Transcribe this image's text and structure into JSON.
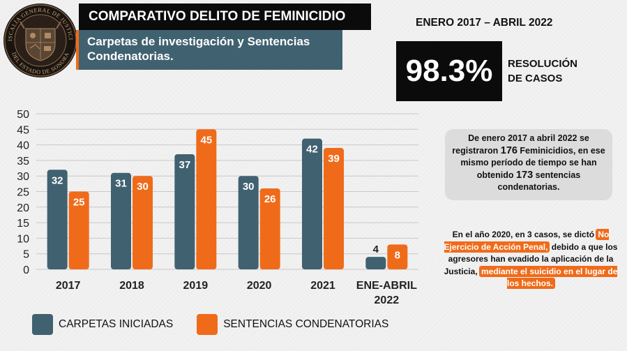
{
  "header": {
    "title": "COMPARATIVO DELITO DE FEMINICIDIO",
    "subtitle": "Carpetas de investigación y Sentencias Condenatorias."
  },
  "logo": {
    "text_top": "FISCALÍA GENERAL DE JUSTICIA",
    "text_bottom": "DEL ESTADO DE SONORA"
  },
  "period": "ENERO 2017 – ABRIL 2022",
  "kpi": {
    "value": "98.3%",
    "label_line1": "RESOLUCIÓN",
    "label_line2": "DE CASOS"
  },
  "summary": {
    "p1": "De enero 2017 a abril 2022 se registraron ",
    "n1": "176",
    "p2": " Feminicidios, en ese mismo período de tiempo se han obtenido ",
    "n2": "173",
    "p3": " sentencias condenatorias."
  },
  "note": {
    "p1": "En el año 2020, en 3 casos, se dictó ",
    "h1": "No Ejercicio de Acción Penal,",
    "p2": " debido a que los agresores han evadido la aplicación de la Justicia, ",
    "h2": "mediante el suicidio en el lugar de los hechos."
  },
  "colors": {
    "teal": "#406170",
    "orange": "#ef6b1a",
    "black": "#0b0b0b"
  },
  "chart_data": {
    "type": "bar",
    "categories": [
      "2017",
      "2018",
      "2019",
      "2020",
      "2021",
      "ENE-ABRIL 2022"
    ],
    "series": [
      {
        "name": "CARPETAS INICIADAS",
        "color": "#406170",
        "values": [
          32,
          31,
          37,
          30,
          42,
          4
        ]
      },
      {
        "name": "SENTENCIAS CONDENATORIAS",
        "color": "#ef6b1a",
        "values": [
          25,
          30,
          45,
          26,
          39,
          8
        ]
      }
    ],
    "ylim": [
      0,
      50
    ],
    "yticks": [
      0,
      5,
      10,
      15,
      20,
      25,
      30,
      35,
      40,
      45,
      50
    ],
    "grid": true,
    "data_labels": true,
    "legend_position": "bottom"
  }
}
